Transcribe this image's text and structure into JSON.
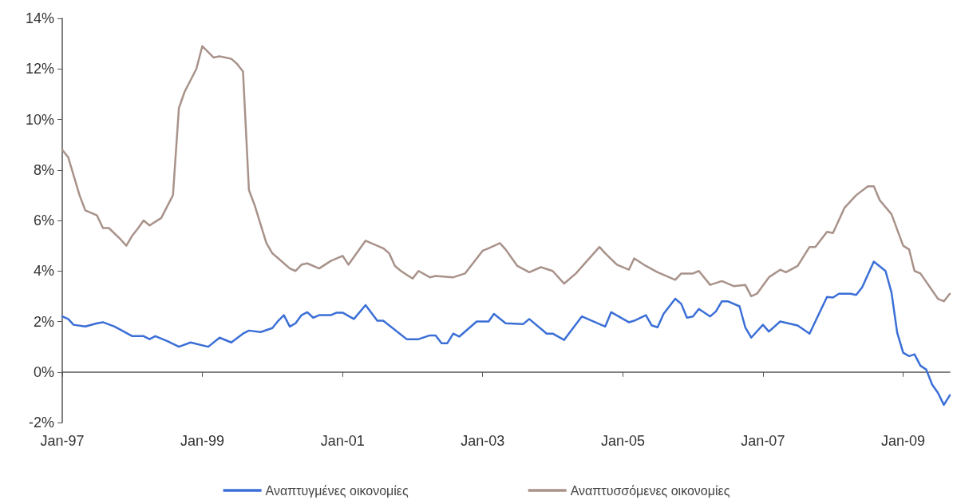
{
  "chart_data": {
    "type": "line",
    "xlim": [
      "1997-01",
      "2009-09"
    ],
    "xticks": [
      {
        "value": "1997-01",
        "label": "Jan-97"
      },
      {
        "value": "1999-01",
        "label": "Jan-99"
      },
      {
        "value": "2001-01",
        "label": "Jan-01"
      },
      {
        "value": "2003-01",
        "label": "Jan-03"
      },
      {
        "value": "2005-01",
        "label": "Jan-05"
      },
      {
        "value": "2007-01",
        "label": "Jan-07"
      },
      {
        "value": "2009-01",
        "label": "Jan-09"
      }
    ],
    "ylim": [
      -2,
      14
    ],
    "yticks": [
      {
        "value": -2,
        "label": "-2%"
      },
      {
        "value": 0,
        "label": "0%"
      },
      {
        "value": 2,
        "label": "2%"
      },
      {
        "value": 4,
        "label": "4%"
      },
      {
        "value": 6,
        "label": "6%"
      },
      {
        "value": 8,
        "label": "8%"
      },
      {
        "value": 10,
        "label": "10%"
      },
      {
        "value": 12,
        "label": "12%"
      },
      {
        "value": 14,
        "label": "14%"
      }
    ],
    "legend": "bottom",
    "marker": "none",
    "line_style": "solid",
    "series": [
      {
        "name": "Αναπτυγμένες οικονομίες",
        "color": "#3b6fd6",
        "x": [
          "1997-01",
          "1997-02",
          "1997-03",
          "1997-05",
          "1997-07",
          "1997-08",
          "1997-10",
          "1998-01",
          "1998-03",
          "1998-04",
          "1998-05",
          "1998-07",
          "1998-09",
          "1998-11",
          "1999-02",
          "1999-04",
          "1999-06",
          "1999-08",
          "1999-09",
          "1999-11",
          "2000-01",
          "2000-02",
          "2000-03",
          "2000-04",
          "2000-05",
          "2000-06",
          "2000-07",
          "2000-08",
          "2000-09",
          "2000-11",
          "2000-12",
          "2001-01",
          "2001-03",
          "2001-05",
          "2001-07",
          "2001-08",
          "2001-12",
          "2002-02",
          "2002-04",
          "2002-05",
          "2002-06",
          "2002-07",
          "2002-08",
          "2002-09",
          "2002-12",
          "2003-02",
          "2003-03",
          "2003-05",
          "2003-08",
          "2003-09",
          "2003-12",
          "2004-01",
          "2004-03",
          "2004-06",
          "2004-10",
          "2004-11",
          "2005-02",
          "2005-03",
          "2005-05",
          "2005-06",
          "2005-07",
          "2005-08",
          "2005-10",
          "2005-11",
          "2005-12",
          "2006-01",
          "2006-02",
          "2006-04",
          "2006-05",
          "2006-06",
          "2006-07",
          "2006-09",
          "2006-10",
          "2006-11",
          "2007-01",
          "2007-02",
          "2007-04",
          "2007-07",
          "2007-09",
          "2007-10",
          "2007-12",
          "2008-01",
          "2008-02",
          "2008-04",
          "2008-05",
          "2008-06",
          "2008-08",
          "2008-10",
          "2008-11",
          "2008-12",
          "2009-01",
          "2009-02",
          "2009-03",
          "2009-04",
          "2009-05",
          "2009-06",
          "2009-07",
          "2009-08",
          "2009-09"
        ],
        "values": [
          2.2,
          2.1,
          1.87,
          1.8,
          1.93,
          1.97,
          1.8,
          1.42,
          1.42,
          1.3,
          1.42,
          1.23,
          1.0,
          1.17,
          1.0,
          1.36,
          1.17,
          1.52,
          1.64,
          1.58,
          1.74,
          2.03,
          2.25,
          1.8,
          1.93,
          2.25,
          2.37,
          2.15,
          2.25,
          2.25,
          2.35,
          2.35,
          2.1,
          2.65,
          2.03,
          2.03,
          1.3,
          1.3,
          1.45,
          1.45,
          1.14,
          1.14,
          1.52,
          1.4,
          2.0,
          2.0,
          2.3,
          1.93,
          1.9,
          2.1,
          1.52,
          1.52,
          1.27,
          2.2,
          1.8,
          2.37,
          1.97,
          2.03,
          2.25,
          1.84,
          1.77,
          2.3,
          2.9,
          2.7,
          2.15,
          2.2,
          2.5,
          2.2,
          2.4,
          2.8,
          2.8,
          2.6,
          1.77,
          1.36,
          1.87,
          1.6,
          2.0,
          1.84,
          1.52,
          2.0,
          2.97,
          2.95,
          3.1,
          3.1,
          3.05,
          3.35,
          4.37,
          4.0,
          3.15,
          1.55,
          0.76,
          0.63,
          0.7,
          0.25,
          0.1,
          -0.5,
          -0.82,
          -1.3,
          -0.92
        ]
      },
      {
        "name": "Αναπτυσσόμενες οικονομίες",
        "color": "#a8928a",
        "x": [
          "1997-01",
          "1997-02",
          "1997-04",
          "1997-05",
          "1997-07",
          "1997-08",
          "1997-09",
          "1997-11",
          "1997-12",
          "1998-01",
          "1998-02",
          "1998-03",
          "1998-04",
          "1998-06",
          "1998-08",
          "1998-09",
          "1998-10",
          "1998-12",
          "1999-01",
          "1999-03",
          "1999-04",
          "1999-06",
          "1999-07",
          "1999-08",
          "1999-09",
          "1999-10",
          "1999-12",
          "2000-01",
          "2000-02",
          "2000-04",
          "2000-05",
          "2000-06",
          "2000-07",
          "2000-09",
          "2000-11",
          "2001-01",
          "2001-02",
          "2001-05",
          "2001-08",
          "2001-09",
          "2001-10",
          "2001-11",
          "2002-01",
          "2002-02",
          "2002-04",
          "2002-05",
          "2002-08",
          "2002-10",
          "2003-01",
          "2003-02",
          "2003-04",
          "2003-05",
          "2003-07",
          "2003-09",
          "2003-11",
          "2004-01",
          "2004-03",
          "2004-05",
          "2004-09",
          "2004-10",
          "2004-12",
          "2005-02",
          "2005-03",
          "2005-05",
          "2005-07",
          "2005-10",
          "2005-11",
          "2006-01",
          "2006-02",
          "2006-04",
          "2006-06",
          "2006-08",
          "2006-10",
          "2006-11",
          "2006-12",
          "2007-02",
          "2007-04",
          "2007-05",
          "2007-07",
          "2007-09",
          "2007-10",
          "2007-12",
          "2008-01",
          "2008-03",
          "2008-05",
          "2008-07",
          "2008-08",
          "2008-09",
          "2008-11",
          "2009-01",
          "2009-02",
          "2009-03",
          "2009-04",
          "2009-07",
          "2009-08",
          "2009-09"
        ],
        "values": [
          8.8,
          8.5,
          7.0,
          6.4,
          6.2,
          5.7,
          5.7,
          5.25,
          5.0,
          5.4,
          5.7,
          6.0,
          5.8,
          6.1,
          7.0,
          10.45,
          11.1,
          12.0,
          12.9,
          12.45,
          12.5,
          12.4,
          12.2,
          11.9,
          7.2,
          6.6,
          5.1,
          4.7,
          4.5,
          4.1,
          4.0,
          4.25,
          4.3,
          4.1,
          4.4,
          4.6,
          4.25,
          5.2,
          4.9,
          4.7,
          4.2,
          4.0,
          3.7,
          4.0,
          3.75,
          3.8,
          3.75,
          3.9,
          4.8,
          4.9,
          5.1,
          4.85,
          4.2,
          3.95,
          4.15,
          4.0,
          3.5,
          3.9,
          4.95,
          4.7,
          4.25,
          4.05,
          4.5,
          4.2,
          3.95,
          3.65,
          3.9,
          3.9,
          4.0,
          3.45,
          3.6,
          3.4,
          3.45,
          3.0,
          3.1,
          3.75,
          4.05,
          3.95,
          4.2,
          4.95,
          4.95,
          5.55,
          5.5,
          6.5,
          7.0,
          7.35,
          7.35,
          6.8,
          6.25,
          5.0,
          4.85,
          4.0,
          3.9,
          2.9,
          2.8,
          3.1
        ]
      }
    ]
  }
}
